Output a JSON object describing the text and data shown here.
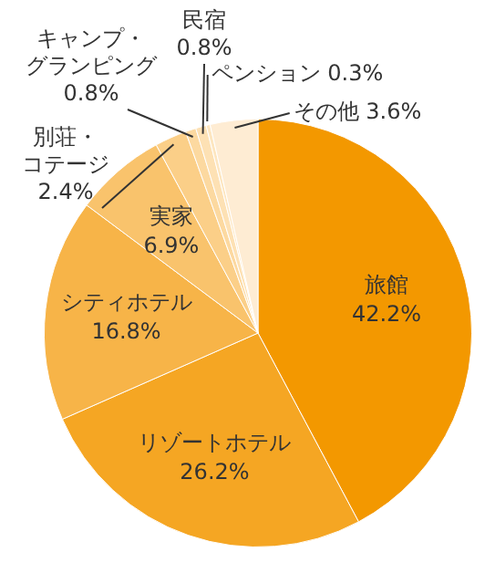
{
  "chart_data": {
    "type": "pie",
    "categories": [
      "旅館",
      "リゾートホテル",
      "シティホテル",
      "実家",
      "別荘・コテージ",
      "キャンプ・グランピング",
      "民宿",
      "ペンション",
      "その他"
    ],
    "values": [
      42.2,
      26.2,
      16.8,
      6.9,
      2.4,
      0.8,
      0.8,
      0.3,
      3.6
    ],
    "value_labels": [
      "42.2%",
      "26.2%",
      "16.8%",
      "6.9%",
      "2.4%",
      "0.8%",
      "0.8%",
      "0.3%",
      "3.6%"
    ],
    "colors": [
      "#f39800",
      "#f5a623",
      "#f7b448",
      "#f9c36c",
      "#fbcf88",
      "#fcd9a0",
      "#fde1b4",
      "#fde6c0",
      "#feecd3"
    ],
    "legend": false
  }
}
